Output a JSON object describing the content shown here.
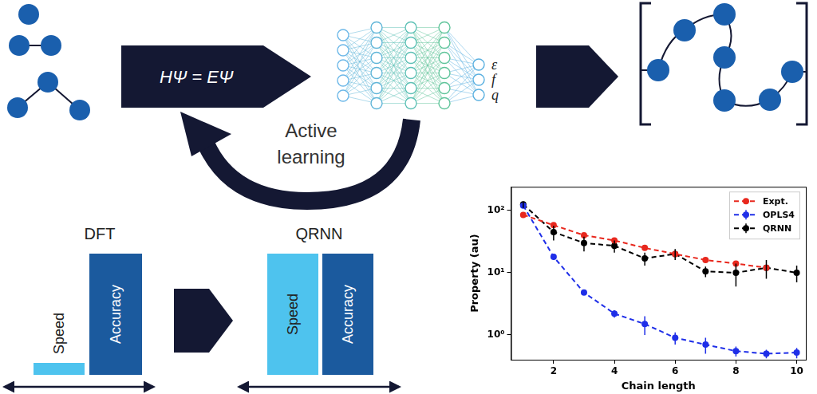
{
  "diagram": {
    "equation": "HΨ = EΨ",
    "outputs": [
      "ε",
      "f",
      "q"
    ],
    "loop_label_lines": [
      "Active",
      "learning"
    ],
    "comparison": [
      {
        "method": "DFT",
        "bars": [
          "Speed",
          "Accuracy"
        ]
      },
      {
        "method": "QRNN",
        "bars": [
          "Speed",
          "Accuracy"
        ]
      }
    ]
  },
  "chart_data": {
    "type": "line",
    "xlabel": "Chain length",
    "ylabel": "Property (au)",
    "x": [
      1,
      2,
      3,
      4,
      5,
      6,
      7,
      8,
      9,
      10
    ],
    "xlim": [
      0.6,
      10.3
    ],
    "xticks": [
      2,
      4,
      6,
      8,
      10
    ],
    "log": "y",
    "ylim": [
      0.4,
      240
    ],
    "yticks": [
      {
        "value": 1,
        "label": "10⁰"
      },
      {
        "value": 10,
        "label": "10¹"
      },
      {
        "value": 100,
        "label": "10²"
      }
    ],
    "grid": false,
    "legend": "upper right",
    "series": [
      {
        "name": "Expt.",
        "color": "#e8281e",
        "marker": "circle",
        "line_style": "dashed",
        "values": [
          85,
          58,
          40,
          33,
          25,
          20,
          16,
          14,
          12,
          null
        ]
      },
      {
        "name": "OPLS4",
        "color": "#1f2fe8",
        "marker": "circle",
        "line_style": "dashed",
        "values": [
          120,
          18,
          4.8,
          2.2,
          1.5,
          0.9,
          0.7,
          0.55,
          0.5,
          0.52
        ],
        "errors": [
          12,
          2,
          0.4,
          0.3,
          0.5,
          0.2,
          0.2,
          0.1,
          0.08,
          0.1
        ]
      },
      {
        "name": "QRNN",
        "color": "#000000",
        "marker": "circle",
        "line_style": "dashed",
        "values": [
          125,
          45,
          30,
          27,
          17,
          20,
          10.5,
          10,
          12,
          10
        ],
        "errors": [
          15,
          12,
          8,
          6,
          4,
          4,
          2,
          4,
          4,
          3
        ]
      }
    ]
  }
}
